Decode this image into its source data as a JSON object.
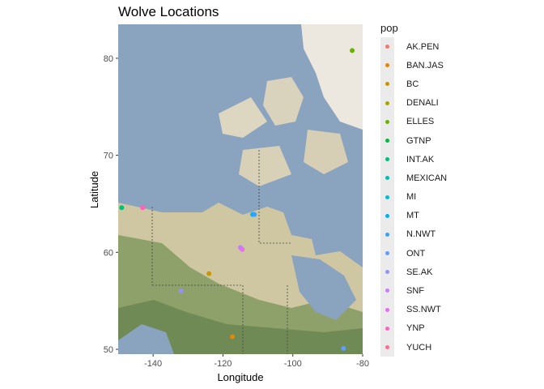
{
  "chart_data": {
    "type": "scatter",
    "title": "Wolve Locations",
    "xlabel": "Longitude",
    "ylabel": "Latitude",
    "xlim": [
      -150,
      -80
    ],
    "ylim": [
      49.5,
      83.5
    ],
    "xticks": [
      -140,
      -120,
      -100,
      -80
    ],
    "yticks": [
      50,
      60,
      70,
      80
    ],
    "grid": false,
    "basemap": "satellite terrain map of northern North America",
    "legend": {
      "title": "pop",
      "placement": "right"
    },
    "series": [
      {
        "name": "AK.PEN",
        "color": "#F8766D",
        "points": []
      },
      {
        "name": "BAN.JAS",
        "color": "#E58700",
        "points": [
          [
            -117.3,
            51.3
          ]
        ]
      },
      {
        "name": "BC",
        "color": "#C99800",
        "points": [
          [
            -124.0,
            57.8
          ]
        ]
      },
      {
        "name": "DENALI",
        "color": "#A3A500",
        "points": []
      },
      {
        "name": "ELLES",
        "color": "#6BB100",
        "points": [
          [
            -83.0,
            80.8
          ]
        ]
      },
      {
        "name": "GTNP",
        "color": "#00BA38",
        "points": []
      },
      {
        "name": "INT.AK",
        "color": "#00BF7D",
        "points": [
          [
            -149.0,
            64.6
          ]
        ]
      },
      {
        "name": "MEXICAN",
        "color": "#00C0AF",
        "points": []
      },
      {
        "name": "MI",
        "color": "#00BCD8",
        "points": []
      },
      {
        "name": "MT",
        "color": "#00B0F6",
        "points": [
          [
            -111.5,
            63.9
          ]
        ]
      },
      {
        "name": "N.NWT",
        "color": "#35A2FF",
        "points": [
          [
            -111.0,
            63.9
          ]
        ]
      },
      {
        "name": "ONT",
        "color": "#619CFF",
        "points": [
          [
            -85.5,
            50.1
          ]
        ]
      },
      {
        "name": "SE.AK",
        "color": "#9590FF",
        "points": [
          [
            -132.0,
            56.0
          ]
        ]
      },
      {
        "name": "SNF",
        "color": "#C77CFF",
        "points": [
          [
            -115.0,
            60.5
          ]
        ]
      },
      {
        "name": "SS.NWT",
        "color": "#E76BF3",
        "points": [
          [
            -114.5,
            60.3
          ]
        ]
      },
      {
        "name": "YNP",
        "color": "#FF62BC",
        "points": [
          [
            -143.0,
            64.6
          ]
        ]
      },
      {
        "name": "YUCH",
        "color": "#FF6C91",
        "points": []
      }
    ]
  }
}
